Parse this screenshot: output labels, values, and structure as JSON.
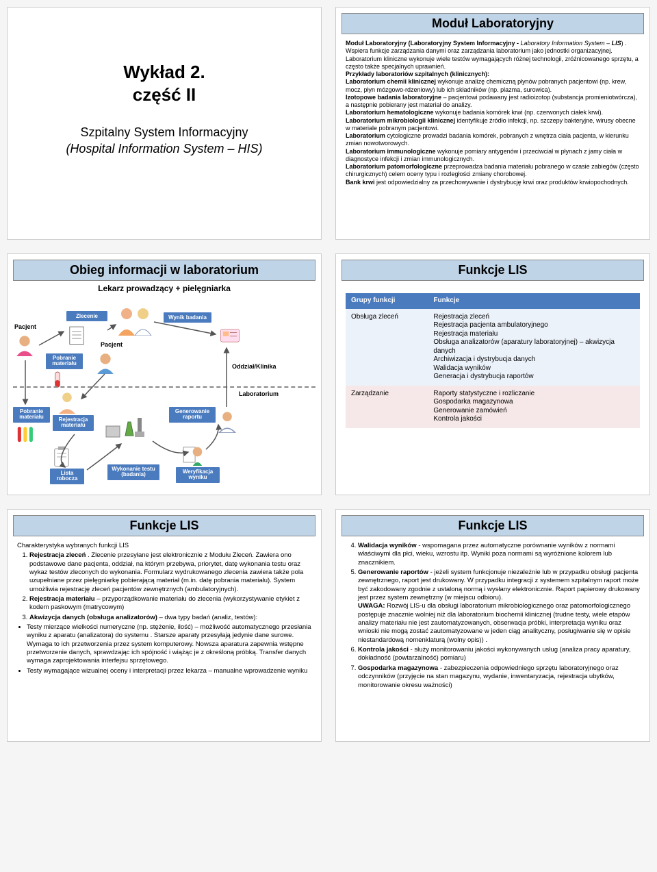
{
  "slide1": {
    "title_a": "Wykład 2.",
    "title_b": "część II",
    "sub_a": "Szpitalny System Informacyjny",
    "sub_b": "(Hospital Information System – HIS)"
  },
  "slide2": {
    "title": "Moduł  Laboratoryjny",
    "body_html": "<b>Moduł Laboratoryjny (Laboratoryjny System Informacyjny - </b><i>Laboratory Information System – <b>LIS</b></i>) . Wspiera funkcje zarządzania danymi oraz zarządzania laboratorium jako jednostki organizacyjnej.<br>Laboratorium kliniczne wykonuje wiele testów wymagających różnej technologii, zróżnicowanego sprzętu, a często także specjalnych uprawnień.<br><b>Przykłady laboratoriów szpitalnych (klinicznych):</b><br><b>Laboratorium chemii klinicznej</b> wykonuje analizę chemiczną płynów pobranych pacjentowi (np. krew, mocz, płyn mózgowo-rdzeniowy) lub ich składników (np. plazma, surowica).<br><b>Izotopowe badania laboratoryjne</b> – pacjentowi podawany jest radioizotop (substancja promieniotwórcza), a następnie pobierany jest materiał do analizy.<br><b>Laboratorium hematologiczne</b> wykonuje badania komórek krwi (np. czerwonych ciałek krwi).<br><b>Laboratorium mikrobiologii klinicznej</b> identyfikuje źródło infekcji, np. szczepy bakteryjne, wirusy obecne w materiale pobranym pacjentowi.<br><b>Laboratorium</b> cytologiczne prowadzi badania komórek, pobranych z wnętrza ciała pacjenta, w kierunku zmian nowotworowych.<br><b>Laboratorium immunologiczne</b> wykonuje pomiary antygenów i przeciwciał w płynach z jamy ciała w diagnostyce infekcji i zmian immunologicznych.<br><b>Laboratorium patomorfologiczne</b> przeprowadza badania materiału pobranego w czasie zabiegów (często chirurgicznych) celem oceny typu i rozległości zmiany chorobowej.<br><b>Bank krwi</b> jest odpowiedzialny za przechowywanie i dystrybucję krwi oraz produktów krwiopochodnych."
  },
  "slide3": {
    "title": "Obieg informacji w laboratorium",
    "subhead": "Lekarz prowadzący + pielęgniarka",
    "tags": {
      "zlecenie": "Zlecenie",
      "wynik": "Wynik badania",
      "pobranie": "Pobranie materiału",
      "rejestracja": "Rejestracja materiału",
      "generowanie": "Generowanie raportu",
      "lista": "Lista robocza",
      "wykonanie": "Wykonanie testu (badania)",
      "weryfikacja": "Weryfikacja wyniku"
    },
    "labels": {
      "pacjent": "Pacjent",
      "pacjent2": "Pacjent",
      "oddzial": "Oddział/Klinika",
      "lab": "Laboratorium",
      "pobranie2": "Pobranie materiału"
    },
    "colors": {
      "tag_bg": "#4a7bbf",
      "nurse": "#f4b183",
      "doctor": "#bdd7ee"
    }
  },
  "slide4": {
    "title": "Funkcje LIS",
    "th1": "Grupy funkcji",
    "th2": "Funkcje",
    "rows": [
      {
        "g": "Obsługa zleceń",
        "f": "Rejestracja zleceń\nRejestracja pacjenta ambulatoryjnego\nRejestracja materiału\nObsługa analizatorów (aparatury laboratoryjnej) – akwizycja danych\nArchiwizacja i dystrybucja danych\nWalidacja wyników\nGeneracja i dystrybucja raportów"
      },
      {
        "g": "Zarządzanie",
        "f": "Raporty statystyczne i rozliczanie\nGospodarka magazynowa\nGenerowanie zamówień\nKontrola jakości"
      }
    ]
  },
  "slide5": {
    "title": "Funkcje LIS",
    "intro": "Charakterystyka wybranych funkcji LIS",
    "items": [
      "<b>Rejestracja zleceń</b> . Zlecenie przesyłane jest elektronicznie z Modułu Zleceń. Zawiera ono podstawowe dane pacjenta, oddział, na którym przebywa, priorytet, datę wykonania testu oraz wykaz testów zleconych do wykonania. Formularz wydrukowanego zlecenia zawiera także pola uzupełniane przez pielęgniarkę pobierającą materiał (m.in. datę pobrania materiału). System umożliwia rejestrację zleceń pacjentów zewnętrznych (ambulatoryjnych).",
      "<b>Rejestracja materiału</b> – przyporządkowanie materiału do zlecenia (wykorzystywanie etykiet z kodem paskowym (matrycowym)",
      "<b>Akwizycja danych (obsługa analizatorów)</b> – dwa typy badań (analiz, testów):"
    ],
    "bullets": [
      "Testy mierzące wielkości numeryczne (np. stężenie, ilość) – możliwość automatycznego przesłania wyniku z aparatu (analizatora) do systemu . Starsze aparaty przesyłają jedynie dane surowe. Wymaga to ich przetworzenia przez system komputerowy. Nowsza aparatura zapewnia wstępne przetworzenie danych, sprawdzając ich spójność i wiążąc je z określoną próbką. Transfer danych wymaga zaprojektowania interfejsu sprzętowego.",
      "Testy wymagające wizualnej oceny i interpretacji przez lekarza – manualne wprowadzenie wyniku"
    ]
  },
  "slide6": {
    "title": "Funkcje LIS",
    "start": 4,
    "items": [
      "<b>Walidacja wyników</b> - wspomagana przez automatyczne porównanie wyników z normami właściwymi dla płci, wieku, wzrostu itp. Wyniki poza normami są wyróżnione kolorem lub znacznikiem.",
      "<b>Generowanie raportów</b> - jeżeli system funkcjonuje niezależnie lub w przypadku obsługi pacjenta zewnętrznego, raport jest drukowany. W przypadku integracji z systemem szpitalnym raport może być zakodowany zgodnie z ustaloną normą i wysłany elektronicznie. Raport papierowy drukowany jest przez system zewnętrzny (w miejscu odbioru).<br><b>UWAGA:</b> Rozwój LIS-u dla obsługi laboratorium mikrobiologicznego oraz patomorfologicznego postępuje znacznie wolniej niż dla laboratorium biochemii klinicznej (trudne testy, wiele etapów analizy materiału nie jest zautomatyzowanych, obserwacja próbki, interpretacja wyniku oraz wnioski nie mogą zostać zautomatyzowane w jeden ciąg analityczny, posługiwanie się w opisie niestandardową nomenklaturą (wolny opis)) .",
      "<b>Kontrola jakości</b> - służy monitorowaniu jakości wykonywanych usług (analiza pracy aparatury, dokładność (powtarzalność) pomiaru)",
      "<b>Gospodarka magazynowa</b> - zabezpieczenia odpowiedniego sprzętu laboratoryjnego oraz odczynników (przyjęcie na stan magazynu, wydanie, inwentaryzacja, rejestracja ubytków, monitorowanie okresu ważności)"
    ]
  }
}
